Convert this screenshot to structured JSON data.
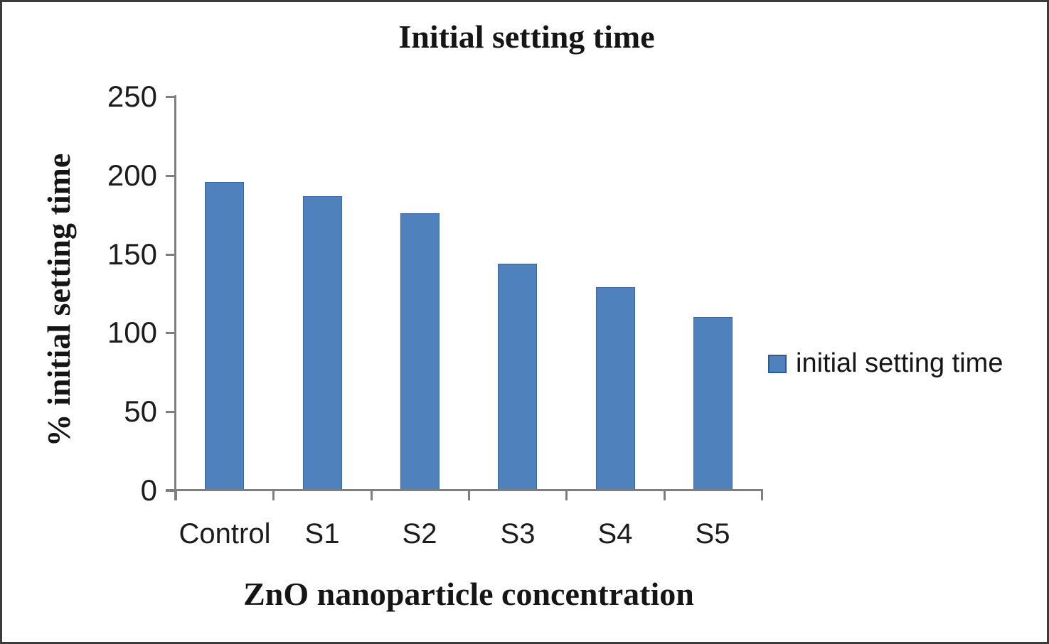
{
  "chart_data": {
    "type": "bar",
    "title": "Initial setting time",
    "xlabel": "ZnO nanoparticle concentration",
    "ylabel": "% initial setting time",
    "categories": [
      "Control",
      "S1",
      "S2",
      "S3",
      "S4",
      "S5"
    ],
    "series": [
      {
        "name": "initial setting time",
        "values": [
          196,
          187,
          176,
          144,
          129,
          110
        ]
      }
    ],
    "ylim": [
      0,
      250
    ],
    "yticks": [
      0,
      50,
      100,
      150,
      200,
      250
    ],
    "grid": false,
    "legend_position": "right",
    "bar_color": "#4f81bd",
    "bar_border_color": "#3a67a0",
    "axis_color": "#7f7f7f",
    "frame_border_color": "#3b3b3b"
  },
  "legend": {
    "label": "initial setting time"
  }
}
